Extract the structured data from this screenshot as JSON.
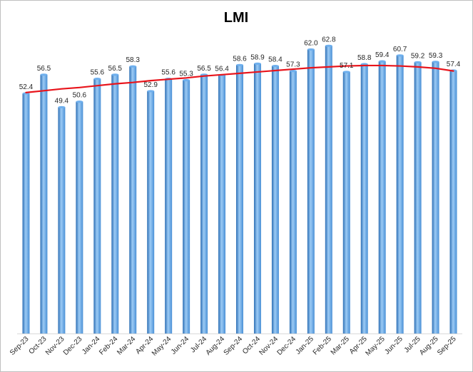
{
  "chart_data": {
    "type": "bar",
    "title": "LMI",
    "xlabel": "",
    "ylabel": "",
    "ylim": [
      0,
      70
    ],
    "grid": false,
    "legend": "none",
    "categories": [
      "Sep-23",
      "Oct-23",
      "Nov-23",
      "Dec-23",
      "Jan-24",
      "Feb-24",
      "Mar-24",
      "Apr-24",
      "May-24",
      "Jun-24",
      "Jul-24",
      "Aug-24",
      "Sep-24",
      "Oct-24",
      "Nov-24",
      "Dec-24",
      "Jan-25",
      "Feb-25",
      "Mar-25",
      "Apr-25",
      "May-25",
      "Jun-25",
      "Jul-25",
      "Aug-25",
      "Sep-25"
    ],
    "values": [
      52.4,
      56.5,
      49.4,
      50.6,
      55.6,
      56.5,
      58.3,
      52.9,
      55.6,
      55.3,
      56.5,
      56.4,
      58.6,
      58.9,
      58.4,
      57.3,
      62.0,
      62.8,
      57.1,
      58.8,
      59.4,
      60.7,
      59.2,
      59.3,
      57.4
    ],
    "value_labels": [
      "52.4",
      "56.5",
      "49.4",
      "50.6",
      "55.6",
      "56.5",
      "58.3",
      "52.9",
      "55.6",
      "55.3",
      "56.5",
      "56.4",
      "58.6",
      "58.9",
      "58.4",
      "57.3",
      "62.0",
      "62.8",
      "57.1",
      "58.8",
      "59.4",
      "60.7",
      "59.2",
      "59.3",
      "57.4"
    ],
    "trendline": {
      "type": "polynomial",
      "values": [
        52.6,
        53.0,
        53.4,
        53.7,
        54.1,
        54.5,
        54.8,
        55.2,
        55.5,
        55.8,
        56.2,
        56.5,
        56.8,
        57.1,
        57.4,
        57.7,
        58.0,
        58.2,
        58.4,
        58.5,
        58.5,
        58.4,
        58.2,
        57.9,
        57.3
      ]
    },
    "colors": {
      "bar_dark": "#2d6fb5",
      "bar_mid": "#4a90d6",
      "bar_light": "#9ccbf5",
      "bar_top": "#6fb0ee",
      "trend": "#e8141b"
    }
  }
}
